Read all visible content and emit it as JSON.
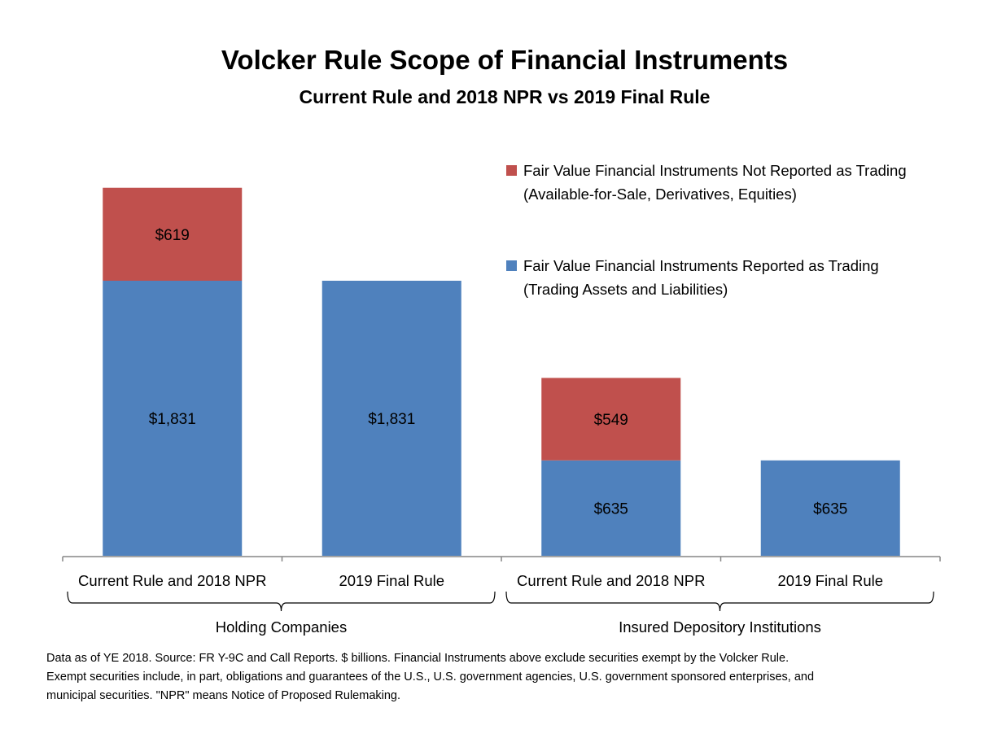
{
  "chart_data": {
    "type": "bar",
    "stacked": true,
    "title": "Volcker Rule Scope of Financial Instruments",
    "subtitle": "Current Rule and 2018 NPR vs 2019 Final Rule",
    "categories": [
      "Current Rule and 2018 NPR",
      "2019 Final Rule",
      "Current Rule and 2018 NPR",
      "2019 Final Rule"
    ],
    "groups": [
      {
        "label": "Holding Companies",
        "categories": [
          0,
          1
        ]
      },
      {
        "label": "Insured Depository Institutions",
        "categories": [
          2,
          3
        ]
      }
    ],
    "series": [
      {
        "name": "Fair Value Financial Instruments Reported as Trading",
        "name_line2": "(Trading Assets and Liabilities)",
        "color": "#4F81BD",
        "values": [
          1831,
          1831,
          635,
          635
        ],
        "labels": [
          "$1,831",
          "$1,831",
          "$635",
          "$635"
        ]
      },
      {
        "name": "Fair Value Financial Instruments Not Reported as Trading",
        "name_line2": "(Available-for-Sale, Derivatives, Equities)",
        "color": "#C0504D",
        "values": [
          619,
          null,
          549,
          null
        ],
        "labels": [
          "$619",
          "",
          "$549",
          ""
        ]
      }
    ],
    "ylim": [
      0,
      2450
    ],
    "grid": false,
    "legend_position": "top-right"
  },
  "footnote": [
    "Data as of YE 2018.  Source: FR Y-9C and Call Reports.  $ billions.  Financial Instruments above exclude securities exempt by the Volcker Rule.",
    "Exempt securities include, in part, obligations and guarantees of the U.S., U.S. government agencies, U.S. government sponsored enterprises, and",
    "municipal securities.  \"NPR\" means Notice of Proposed Rulemaking."
  ]
}
